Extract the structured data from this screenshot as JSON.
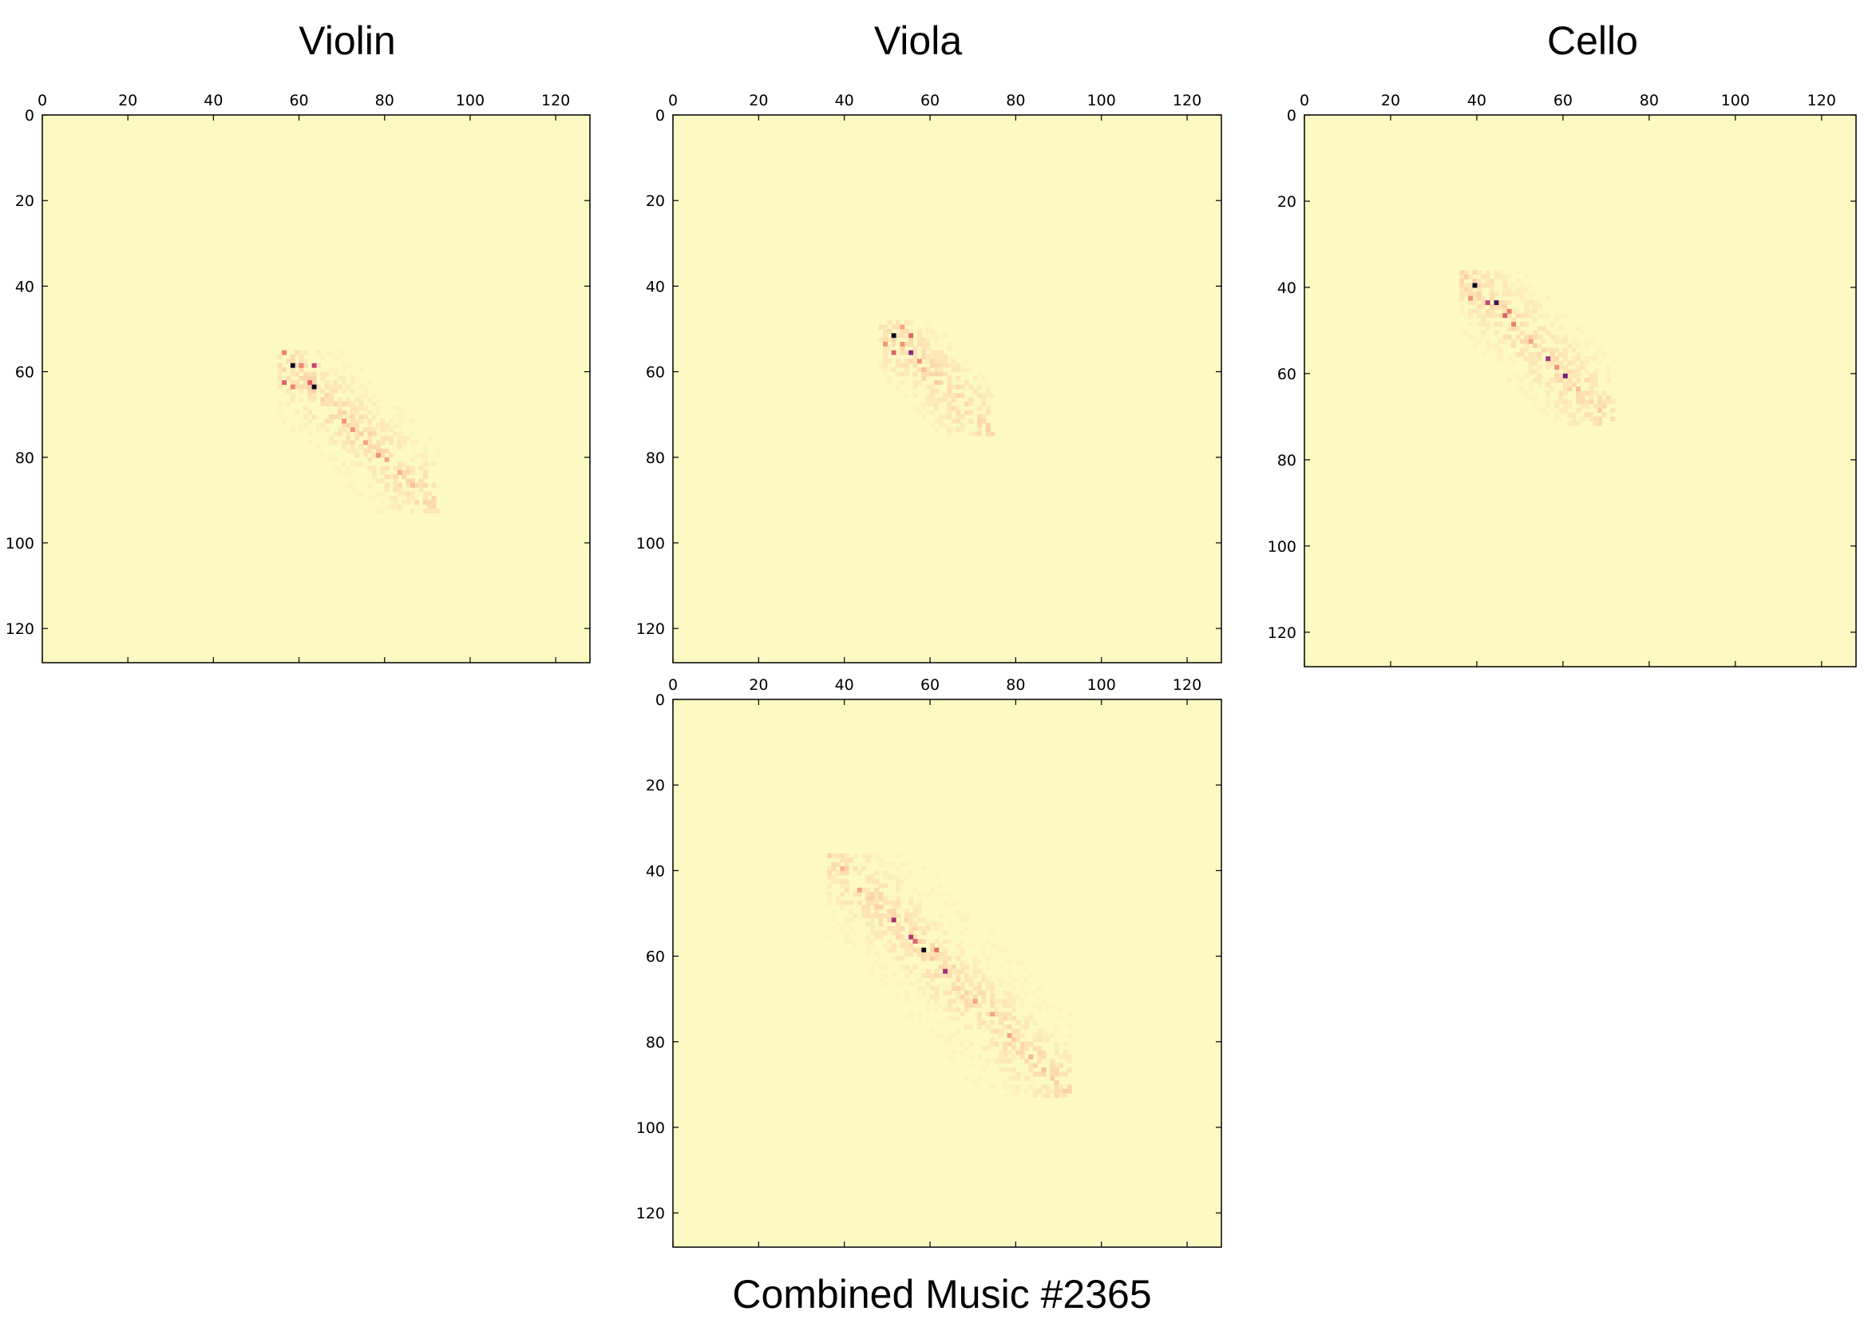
{
  "titles": {
    "violin": "Violin",
    "viola": "Viola",
    "cello": "Cello",
    "combined": "Combined Music #2365"
  },
  "chart_data": [
    {
      "type": "heatmap",
      "title": "Violin",
      "xlim": [
        0,
        128
      ],
      "ylim": [
        0,
        128
      ],
      "y_inverted": true,
      "x_axis_position": "top",
      "x_ticks": [
        "0",
        "20",
        "40",
        "60",
        "80",
        "100",
        "120"
      ],
      "y_ticks": [
        "0",
        "20",
        "40",
        "60",
        "80",
        "100",
        "120"
      ],
      "background_color": "#fcf9c3",
      "colormap": "magma_r",
      "cells": [
        {
          "x": 58,
          "y": 58,
          "v": 1.0
        },
        {
          "x": 63,
          "y": 63,
          "v": 1.0
        },
        {
          "x": 56,
          "y": 55,
          "v": 0.5
        },
        {
          "x": 60,
          "y": 58,
          "v": 0.5
        },
        {
          "x": 56,
          "y": 62,
          "v": 0.6
        },
        {
          "x": 62,
          "y": 62,
          "v": 0.6
        },
        {
          "x": 63,
          "y": 58,
          "v": 0.7
        },
        {
          "x": 58,
          "y": 63,
          "v": 0.5
        },
        {
          "x": 70,
          "y": 71,
          "v": 0.45
        },
        {
          "x": 72,
          "y": 73,
          "v": 0.45
        },
        {
          "x": 75,
          "y": 76,
          "v": 0.4
        },
        {
          "x": 78,
          "y": 79,
          "v": 0.45
        },
        {
          "x": 80,
          "y": 80,
          "v": 0.4
        },
        {
          "x": 83,
          "y": 83,
          "v": 0.35
        },
        {
          "x": 86,
          "y": 86,
          "v": 0.3
        }
      ],
      "diagonal_band": {
        "start": 55,
        "end": 92
      }
    },
    {
      "type": "heatmap",
      "title": "Viola",
      "xlim": [
        0,
        128
      ],
      "ylim": [
        0,
        128
      ],
      "y_inverted": true,
      "x_axis_position": "top",
      "x_ticks": [
        "0",
        "20",
        "40",
        "60",
        "80",
        "100",
        "120"
      ],
      "y_ticks": [
        "0",
        "20",
        "40",
        "60",
        "80",
        "100",
        "120"
      ],
      "background_color": "#fcf9c3",
      "colormap": "magma_r",
      "cells": [
        {
          "x": 51,
          "y": 51,
          "v": 1.0
        },
        {
          "x": 55,
          "y": 55,
          "v": 0.85
        },
        {
          "x": 55,
          "y": 51,
          "v": 0.6
        },
        {
          "x": 51,
          "y": 55,
          "v": 0.6
        },
        {
          "x": 49,
          "y": 53,
          "v": 0.45
        },
        {
          "x": 53,
          "y": 53,
          "v": 0.45
        },
        {
          "x": 57,
          "y": 57,
          "v": 0.45
        },
        {
          "x": 53,
          "y": 49,
          "v": 0.4
        },
        {
          "x": 58,
          "y": 59,
          "v": 0.3
        },
        {
          "x": 61,
          "y": 62,
          "v": 0.25
        }
      ],
      "diagonal_band": {
        "start": 48,
        "end": 74
      }
    },
    {
      "type": "heatmap",
      "title": "Cello",
      "xlim": [
        0,
        128
      ],
      "ylim": [
        0,
        128
      ],
      "y_inverted": true,
      "x_axis_position": "top",
      "x_ticks": [
        "0",
        "20",
        "40",
        "60",
        "80",
        "100",
        "120"
      ],
      "y_ticks": [
        "0",
        "20",
        "40",
        "60",
        "80",
        "100",
        "120"
      ],
      "background_color": "#fcf9c3",
      "colormap": "magma_r",
      "cells": [
        {
          "x": 39,
          "y": 39,
          "v": 1.0
        },
        {
          "x": 44,
          "y": 43,
          "v": 0.95
        },
        {
          "x": 42,
          "y": 43,
          "v": 0.7
        },
        {
          "x": 46,
          "y": 46,
          "v": 0.6
        },
        {
          "x": 47,
          "y": 45,
          "v": 0.5
        },
        {
          "x": 48,
          "y": 48,
          "v": 0.5
        },
        {
          "x": 56,
          "y": 56,
          "v": 0.8
        },
        {
          "x": 60,
          "y": 60,
          "v": 0.9
        },
        {
          "x": 38,
          "y": 42,
          "v": 0.45
        },
        {
          "x": 52,
          "y": 52,
          "v": 0.4
        },
        {
          "x": 58,
          "y": 58,
          "v": 0.45
        },
        {
          "x": 63,
          "y": 63,
          "v": 0.3
        }
      ],
      "diagonal_band": {
        "start": 36,
        "end": 71
      }
    },
    {
      "type": "heatmap",
      "title": "Combined Music #2365",
      "xlim": [
        0,
        128
      ],
      "ylim": [
        0,
        128
      ],
      "y_inverted": true,
      "x_axis_position": "top",
      "x_ticks": [
        "0",
        "20",
        "40",
        "60",
        "80",
        "100",
        "120"
      ],
      "y_ticks": [
        "0",
        "20",
        "40",
        "60",
        "80",
        "100",
        "120"
      ],
      "background_color": "#fcf9c3",
      "colormap": "magma_r",
      "cells": [
        {
          "x": 51,
          "y": 51,
          "v": 0.8
        },
        {
          "x": 55,
          "y": 55,
          "v": 0.75
        },
        {
          "x": 58,
          "y": 58,
          "v": 1.0
        },
        {
          "x": 63,
          "y": 63,
          "v": 0.8
        },
        {
          "x": 61,
          "y": 58,
          "v": 0.55
        },
        {
          "x": 56,
          "y": 56,
          "v": 0.6
        },
        {
          "x": 43,
          "y": 44,
          "v": 0.4
        },
        {
          "x": 39,
          "y": 39,
          "v": 0.35
        },
        {
          "x": 70,
          "y": 70,
          "v": 0.4
        },
        {
          "x": 74,
          "y": 73,
          "v": 0.4
        },
        {
          "x": 78,
          "y": 78,
          "v": 0.4
        },
        {
          "x": 83,
          "y": 83,
          "v": 0.35
        },
        {
          "x": 86,
          "y": 86,
          "v": 0.3
        }
      ],
      "diagonal_band": {
        "start": 36,
        "end": 92
      }
    }
  ]
}
